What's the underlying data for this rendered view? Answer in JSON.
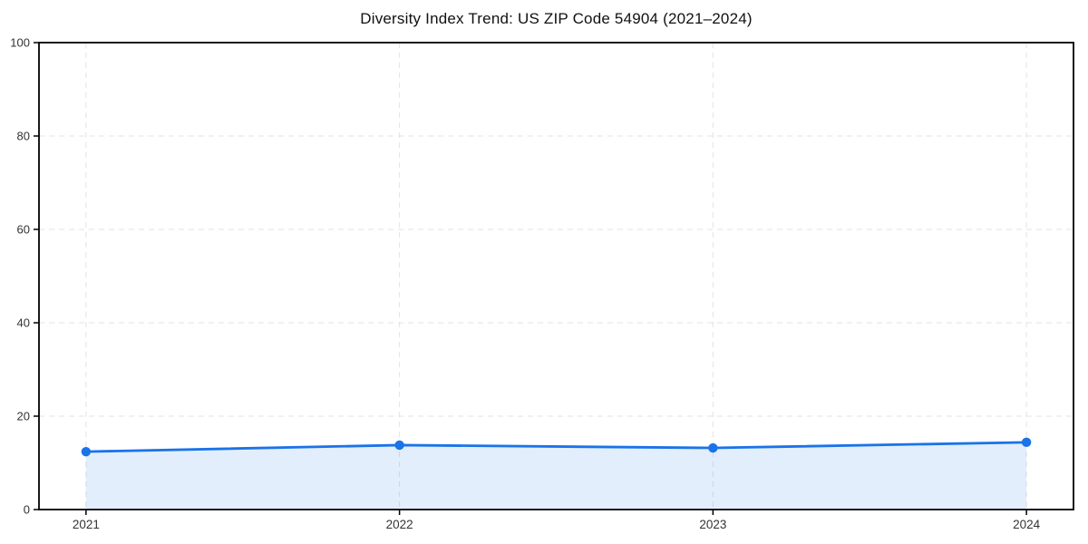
{
  "chart_data": {
    "type": "line",
    "title": "Diversity Index Trend: US ZIP Code 54904 (2021–2024)",
    "xlabel": "",
    "ylabel": "",
    "categories": [
      2021,
      2022,
      2023,
      2024
    ],
    "series": [
      {
        "name": "Diversity Index",
        "values": [
          12.4,
          13.8,
          13.2,
          14.4
        ]
      }
    ],
    "ylim": [
      0,
      100
    ],
    "y_ticks": [
      0,
      20,
      40,
      60,
      80,
      100
    ],
    "x_tick_labels": [
      "2021",
      "2022",
      "2023",
      "2024"
    ],
    "x_margin_frac": 0.05,
    "grid": "dashed",
    "legend": "none",
    "area_fill_to_zero": true,
    "marker": "circle",
    "colors": {
      "line": "#1a73e8",
      "marker": "#1a73e8",
      "area_fill": "rgba(26,115,232,0.12)",
      "grid": "#e3e3e3",
      "frame": "#000000",
      "tick_label": "#333333",
      "title": "#111111",
      "plot_background": "#ffffff",
      "figure_background": "#ffffff"
    }
  }
}
